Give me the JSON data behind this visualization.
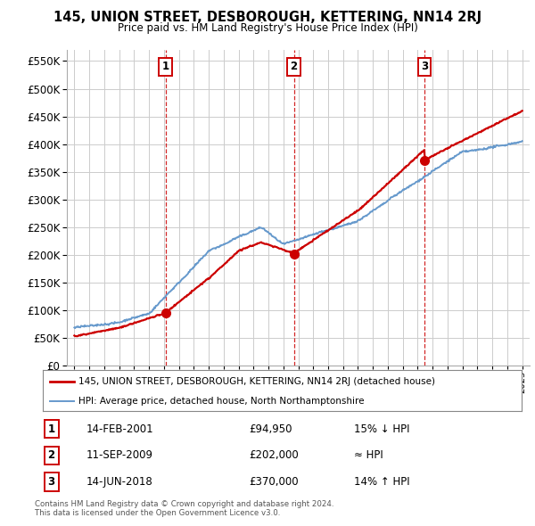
{
  "title": "145, UNION STREET, DESBOROUGH, KETTERING, NN14 2RJ",
  "subtitle": "Price paid vs. HM Land Registry's House Price Index (HPI)",
  "legend_line1": "145, UNION STREET, DESBOROUGH, KETTERING, NN14 2RJ (detached house)",
  "legend_line2": "HPI: Average price, detached house, North Northamptonshire",
  "sales": [
    {
      "label": "1",
      "year": 2001.12,
      "price": 94950,
      "date": "14-FEB-2001",
      "amount": "£94,950",
      "pct": "15% ↓ HPI"
    },
    {
      "label": "2",
      "year": 2009.71,
      "price": 202000,
      "date": "11-SEP-2009",
      "amount": "£202,000",
      "pct": "≈ HPI"
    },
    {
      "label": "3",
      "year": 2018.45,
      "price": 370000,
      "date": "14-JUN-2018",
      "amount": "£370,000",
      "pct": "14% ↑ HPI"
    }
  ],
  "footer1": "Contains HM Land Registry data © Crown copyright and database right 2024.",
  "footer2": "This data is licensed under the Open Government Licence v3.0.",
  "red_color": "#cc0000",
  "blue_color": "#6699cc",
  "bg_color": "#ffffff",
  "grid_color": "#cccccc",
  "ylim": [
    0,
    570000
  ],
  "yticks": [
    0,
    50000,
    100000,
    150000,
    200000,
    250000,
    300000,
    350000,
    400000,
    450000,
    500000,
    550000
  ],
  "xlim_start": 1994.5,
  "xlim_end": 2025.5
}
